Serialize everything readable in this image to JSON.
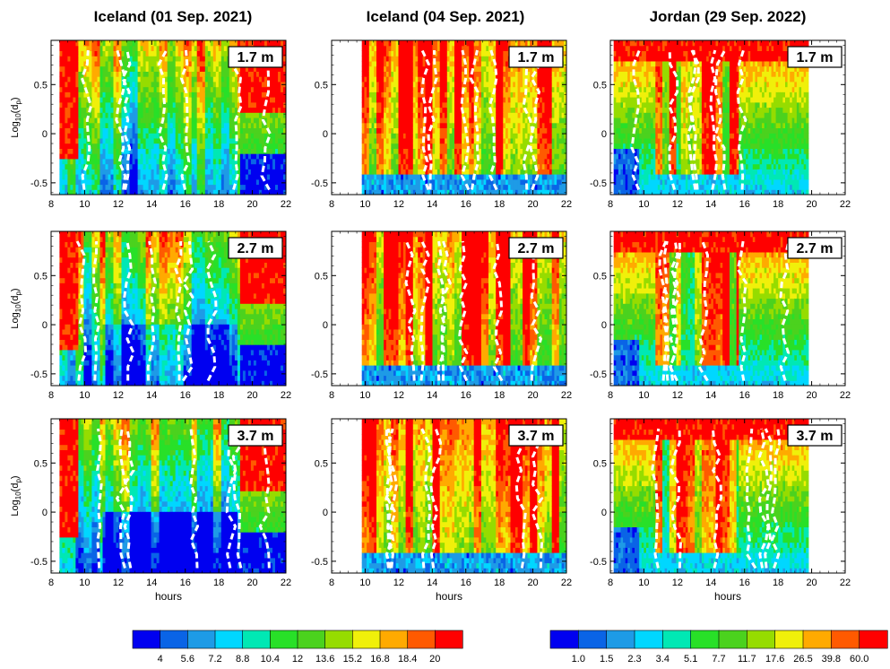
{
  "chart_data": {
    "type": "heatmap",
    "layout": "3x3 grid of contour panels",
    "columns": [
      {
        "title": "Iceland (01 Sep. 2021)",
        "colorbar": "left"
      },
      {
        "title": "Iceland (04 Sep. 2021)",
        "colorbar": "right"
      },
      {
        "title": "Jordan (29 Sep. 2022)",
        "colorbar": "right"
      }
    ],
    "rows": [
      {
        "height_label": "1.7 m"
      },
      {
        "height_label": "2.7 m"
      },
      {
        "height_label": "3.7 m"
      }
    ],
    "xlabel": "hours",
    "ylabel_main": "Log",
    "ylabel_sub": "10",
    "ylabel_tail": "(d",
    "ylabel_sub2": "p",
    "ylabel_end": ")",
    "xlim": [
      8,
      22
    ],
    "ylim": [
      -0.62,
      0.95
    ],
    "xticks": [
      "8",
      "10",
      "12",
      "14",
      "16",
      "18",
      "20",
      "22"
    ],
    "yticks": [
      "-0.5",
      "0",
      "0.5"
    ],
    "data_coverage_hours": [
      [
        8.5,
        22
      ],
      [
        9.8,
        22
      ],
      [
        8.2,
        19.8
      ]
    ],
    "colorbar_left": {
      "levels": [
        "4",
        "5.6",
        "7.2",
        "8.8",
        "10.4",
        "12",
        "13.6",
        "15.2",
        "16.8",
        "18.4",
        "20"
      ],
      "colors": [
        "#0000f0",
        "#0a64e6",
        "#1e9be6",
        "#00d7ff",
        "#00e8b4",
        "#28e028",
        "#4bd21e",
        "#96dc00",
        "#f0f00a",
        "#ffaa00",
        "#ff5a00",
        "#ff0000"
      ]
    },
    "colorbar_right": {
      "levels": [
        "1.0",
        "1.5",
        "2.3",
        "3.4",
        "5.1",
        "7.7",
        "11.7",
        "17.6",
        "26.5",
        "39.8",
        "60.0"
      ],
      "colors": [
        "#0000f0",
        "#0a64e6",
        "#1e9be6",
        "#00d7ff",
        "#00e8b4",
        "#28e028",
        "#4bd21e",
        "#96dc00",
        "#f0f00a",
        "#ffaa00",
        "#ff5a00",
        "#ff0000"
      ]
    }
  }
}
